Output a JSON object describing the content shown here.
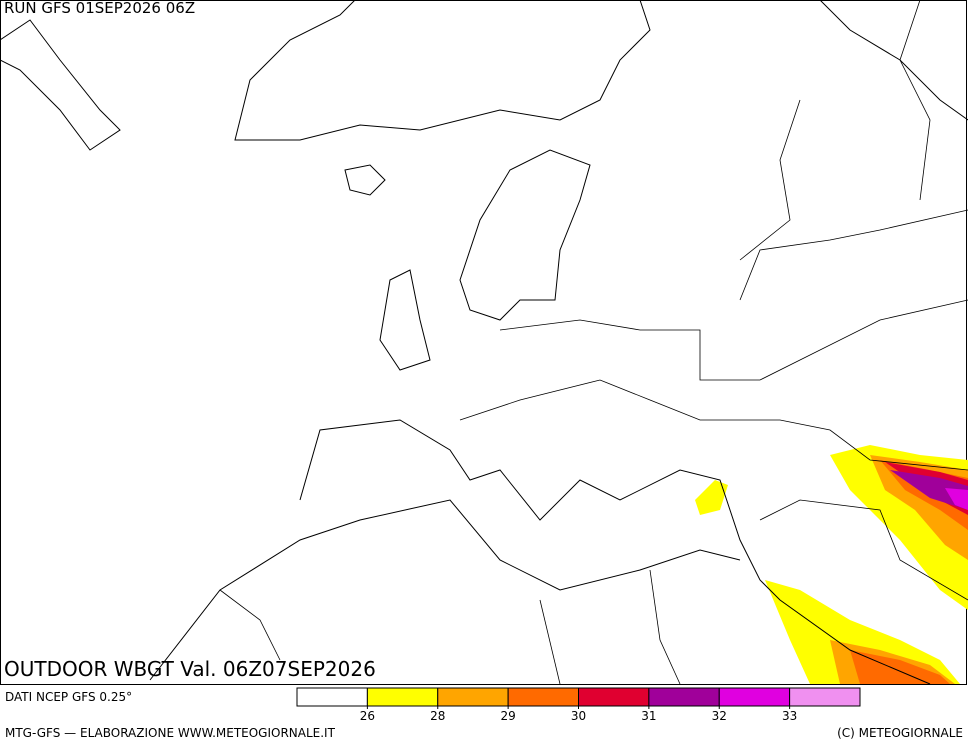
{
  "header": {
    "run": "RUN GFS 01SEP2026 06Z"
  },
  "title": "OUTDOOR WBGT Val. 06Z07SEP2026",
  "source": "DATI NCEP GFS 0.25°",
  "footer": {
    "left": "MTG-GFS — ELABORAZIONE WWW.METEOGIORNALE.IT",
    "right": "(C) METEOGIORNALE"
  },
  "colorbar": {
    "levels": [
      26,
      28,
      29,
      30,
      31,
      32,
      33
    ],
    "colors": [
      "#ffffff",
      "#ffff00",
      "#ffa500",
      "#ff6a00",
      "#e00030",
      "#a0009a",
      "#e000e0",
      "#f090f0"
    ]
  }
}
